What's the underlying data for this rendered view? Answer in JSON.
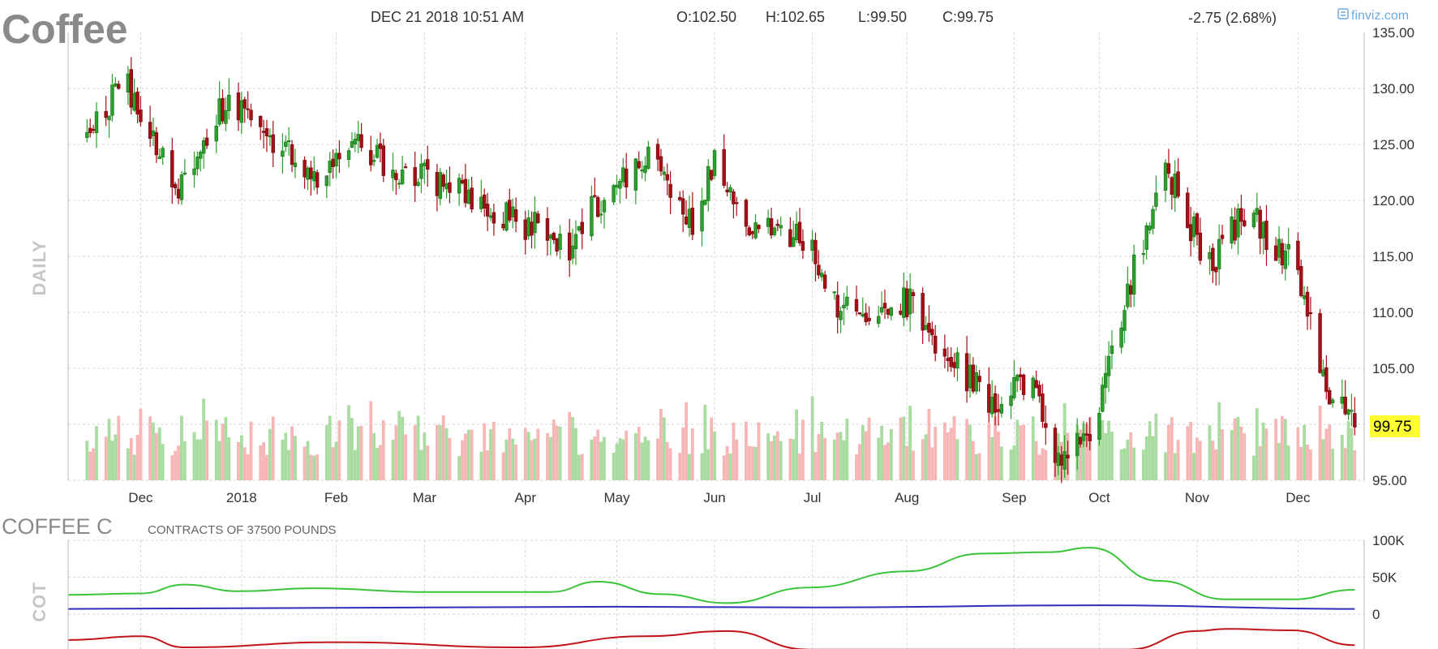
{
  "header": {
    "symbol": "Coffee",
    "datetime": "DEC 21 2018 10:51 AM",
    "open": "O:102.50",
    "high": "H:102.65",
    "low": "L:99.50",
    "close": "C:99.75",
    "change": "-2.75 (2.68%)",
    "logo": "finviz.com",
    "logo_icon": "finviz-logo-icon"
  },
  "colors": {
    "up": "#2ca02c",
    "down": "#a50f15",
    "vol_up": "#a9dca0",
    "vol_down": "#f7b6b6",
    "change": "#d62728",
    "last_price_bg": "#ffff33",
    "cot_commercial": "#c0141b",
    "cot_large_spec": "#3bc43b",
    "cot_small_spec": "#2e2eb8"
  },
  "chart_data": [
    {
      "type": "candlestick",
      "period_label": "DAILY",
      "y_ticks": [
        "135.00",
        "130.00",
        "125.00",
        "120.00",
        "115.00",
        "110.00",
        "105.00",
        "95.00"
      ],
      "ylim": [
        95,
        135
      ],
      "x_labels": [
        "Dec",
        "2018",
        "Feb",
        "Mar",
        "Apr",
        "May",
        "Jun",
        "Jul",
        "Aug",
        "Sep",
        "Oct",
        "Nov",
        "Dec"
      ],
      "last_price": "99.75",
      "monthly_anchors": [
        {
          "date": "2017-11-15",
          "price": 126
        },
        {
          "date": "2017-11-25",
          "price": 131
        },
        {
          "date": "2017-12-12",
          "price": 121
        },
        {
          "date": "2017-12-29",
          "price": 129
        },
        {
          "date": "2018-01-25",
          "price": 122
        },
        {
          "date": "2018-02-05",
          "price": 125
        },
        {
          "date": "2018-03-01",
          "price": 122
        },
        {
          "date": "2018-04-01",
          "price": 118
        },
        {
          "date": "2018-04-16",
          "price": 116
        },
        {
          "date": "2018-04-25",
          "price": 120
        },
        {
          "date": "2018-05-10",
          "price": 124
        },
        {
          "date": "2018-05-25",
          "price": 118
        },
        {
          "date": "2018-06-01",
          "price": 123
        },
        {
          "date": "2018-06-15",
          "price": 117
        },
        {
          "date": "2018-07-01",
          "price": 117
        },
        {
          "date": "2018-07-10",
          "price": 110
        },
        {
          "date": "2018-08-01",
          "price": 111
        },
        {
          "date": "2018-08-15",
          "price": 106
        },
        {
          "date": "2018-08-27",
          "price": 102
        },
        {
          "date": "2018-09-10",
          "price": 104
        },
        {
          "date": "2018-09-17",
          "price": 97
        },
        {
          "date": "2018-09-28",
          "price": 99
        },
        {
          "date": "2018-10-10",
          "price": 112
        },
        {
          "date": "2018-10-22",
          "price": 123
        },
        {
          "date": "2018-11-05",
          "price": 114
        },
        {
          "date": "2018-11-16",
          "price": 119
        },
        {
          "date": "2018-12-03",
          "price": 114
        },
        {
          "date": "2018-12-12",
          "price": 103
        },
        {
          "date": "2018-12-21",
          "price": 99.75
        }
      ]
    },
    {
      "type": "line",
      "title": "COFFEE C",
      "subtitle": "CONTRACTS OF 37500 POUNDS",
      "period_label": "COT",
      "y_ticks": [
        "100K",
        "50K",
        "0"
      ],
      "ylim": [
        -50000,
        100000
      ],
      "x_labels": [
        "Dec",
        "2018",
        "Feb",
        "Mar",
        "Apr",
        "May",
        "Jun",
        "Jul",
        "Aug",
        "Sep",
        "Oct",
        "Nov",
        "Dec"
      ],
      "series": [
        {
          "color_key": "cot_large_spec",
          "points": [
            {
              "date": "2017-11-08",
              "value": 26000
            },
            {
              "date": "2017-12-01",
              "value": 28000
            },
            {
              "date": "2017-12-15",
              "value": 40000
            },
            {
              "date": "2018-01-01",
              "value": 31000
            },
            {
              "date": "2018-01-25",
              "value": 35000
            },
            {
              "date": "2018-03-01",
              "value": 30000
            },
            {
              "date": "2018-04-10",
              "value": 30000
            },
            {
              "date": "2018-04-25",
              "value": 44000
            },
            {
              "date": "2018-05-15",
              "value": 27000
            },
            {
              "date": "2018-06-05",
              "value": 15000
            },
            {
              "date": "2018-07-01",
              "value": 36000
            },
            {
              "date": "2018-08-01",
              "value": 58000
            },
            {
              "date": "2018-08-25",
              "value": 82000
            },
            {
              "date": "2018-09-15",
              "value": 84000
            },
            {
              "date": "2018-09-28",
              "value": 90000
            },
            {
              "date": "2018-10-20",
              "value": 45000
            },
            {
              "date": "2018-11-10",
              "value": 20000
            },
            {
              "date": "2018-12-01",
              "value": 20000
            },
            {
              "date": "2018-12-21",
              "value": 33000
            }
          ]
        },
        {
          "color_key": "cot_small_spec",
          "points": [
            {
              "date": "2017-11-08",
              "value": 7000
            },
            {
              "date": "2018-01-01",
              "value": 8000
            },
            {
              "date": "2018-05-01",
              "value": 10000
            },
            {
              "date": "2018-07-01",
              "value": 9000
            },
            {
              "date": "2018-10-01",
              "value": 12000
            },
            {
              "date": "2018-12-21",
              "value": 7000
            }
          ]
        },
        {
          "color_key": "cot_commercial",
          "points": [
            {
              "date": "2017-11-08",
              "value": -35000
            },
            {
              "date": "2017-12-01",
              "value": -30000
            },
            {
              "date": "2017-12-15",
              "value": -45000
            },
            {
              "date": "2018-02-01",
              "value": -38000
            },
            {
              "date": "2018-04-01",
              "value": -45000
            },
            {
              "date": "2018-05-10",
              "value": -30000
            },
            {
              "date": "2018-06-05",
              "value": -23000
            },
            {
              "date": "2018-07-01",
              "value": -48000
            },
            {
              "date": "2018-10-10",
              "value": -48000
            },
            {
              "date": "2018-11-01",
              "value": -23000
            },
            {
              "date": "2018-11-10",
              "value": -20000
            },
            {
              "date": "2018-12-01",
              "value": -22000
            },
            {
              "date": "2018-12-21",
              "value": -42000
            }
          ]
        }
      ]
    }
  ]
}
